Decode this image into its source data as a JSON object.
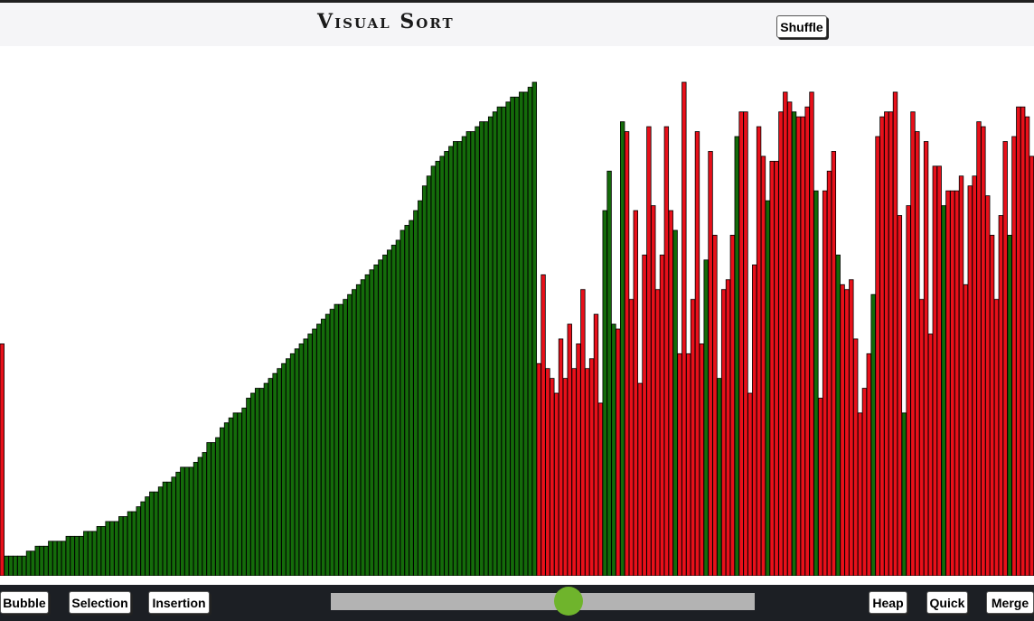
{
  "app": {
    "title": "Visual Sort",
    "shuffle_label": "Shuffle"
  },
  "toolbar": {
    "left_buttons": [
      {
        "label": "Bubble"
      },
      {
        "label": "Selection"
      },
      {
        "label": "Insertion"
      }
    ],
    "right_buttons": [
      {
        "label": "Heap"
      },
      {
        "label": "Quick"
      },
      {
        "label": "Merge"
      }
    ],
    "speed_slider": {
      "value": 0.56
    }
  },
  "colors": {
    "sorted": "#146b0a",
    "unsorted": "#e8101a",
    "bar_outline": "#000000",
    "slider_thumb": "#6fb42c"
  },
  "chart_data": {
    "type": "bar",
    "ylim": [
      0,
      100
    ],
    "values": [
      47,
      4,
      4,
      4,
      4,
      4,
      5,
      5,
      6,
      6,
      6,
      7,
      7,
      7,
      7,
      8,
      8,
      8,
      8,
      9,
      9,
      9,
      10,
      10,
      11,
      11,
      11,
      12,
      12,
      13,
      13,
      14,
      15,
      16,
      17,
      17,
      18,
      19,
      19,
      20,
      21,
      22,
      22,
      22,
      23,
      24,
      25,
      27,
      27,
      28,
      30,
      31,
      32,
      33,
      33,
      34,
      36,
      37,
      38,
      38,
      39,
      40,
      41,
      42,
      43,
      44,
      45,
      46,
      47,
      48,
      49,
      50,
      51,
      52,
      53,
      54,
      55,
      55,
      56,
      57,
      58,
      59,
      60,
      61,
      62,
      63,
      64,
      65,
      66,
      67,
      68,
      70,
      71,
      72,
      74,
      76,
      79,
      81,
      83,
      84,
      85,
      86,
      87,
      88,
      88,
      89,
      90,
      90,
      91,
      92,
      92,
      93,
      94,
      95,
      95,
      96,
      97,
      97,
      98,
      98,
      99,
      100,
      43,
      61,
      42,
      40,
      37,
      48,
      40,
      51,
      42,
      47,
      58,
      42,
      44,
      53,
      35,
      74,
      82,
      51,
      50,
      92,
      90,
      56,
      74,
      39,
      65,
      91,
      75,
      58,
      65,
      91,
      74,
      70,
      45,
      100,
      45,
      56,
      90,
      47,
      64,
      86,
      69,
      40,
      58,
      60,
      69,
      89,
      94,
      94,
      37,
      63,
      91,
      85,
      76,
      84,
      84,
      94,
      98,
      96,
      94,
      93,
      93,
      95,
      98,
      78,
      36,
      78,
      82,
      86,
      65,
      59,
      58,
      60,
      48,
      33,
      38,
      45,
      57,
      89,
      93,
      94,
      94,
      98,
      73,
      33,
      75,
      94,
      90,
      56,
      88,
      49,
      83,
      83,
      75,
      78,
      78,
      78,
      81,
      59,
      79,
      81,
      92,
      91,
      77,
      69,
      56,
      73,
      88,
      69,
      89,
      95,
      95,
      93,
      85
    ],
    "state": "uuuuuuuuuuuuuuuuuuuuuuuuuuuuuuuuuuuuuuuuuuuuuuuuuuuuuuuuuuuuuuuuuuuuuuuuuuuuuuuuuuuuuuuuuuuuuuuuuuuuuuuuuuuuuuuuuuuuuuuuuuuuuuuuuuuuuuuuuuuuuuuuuuuuuuuuuuuuuuuuuuuuuuuuuuuuuuuuuuuuuuuuuuuuuuuuuuuuuuuuuuuuuuuuuuuuuuuuuuuuuuuuuuuuuuuuuuuuuuuuuuuuuuuuuuuuuuuuuuuuuuu"
  }
}
